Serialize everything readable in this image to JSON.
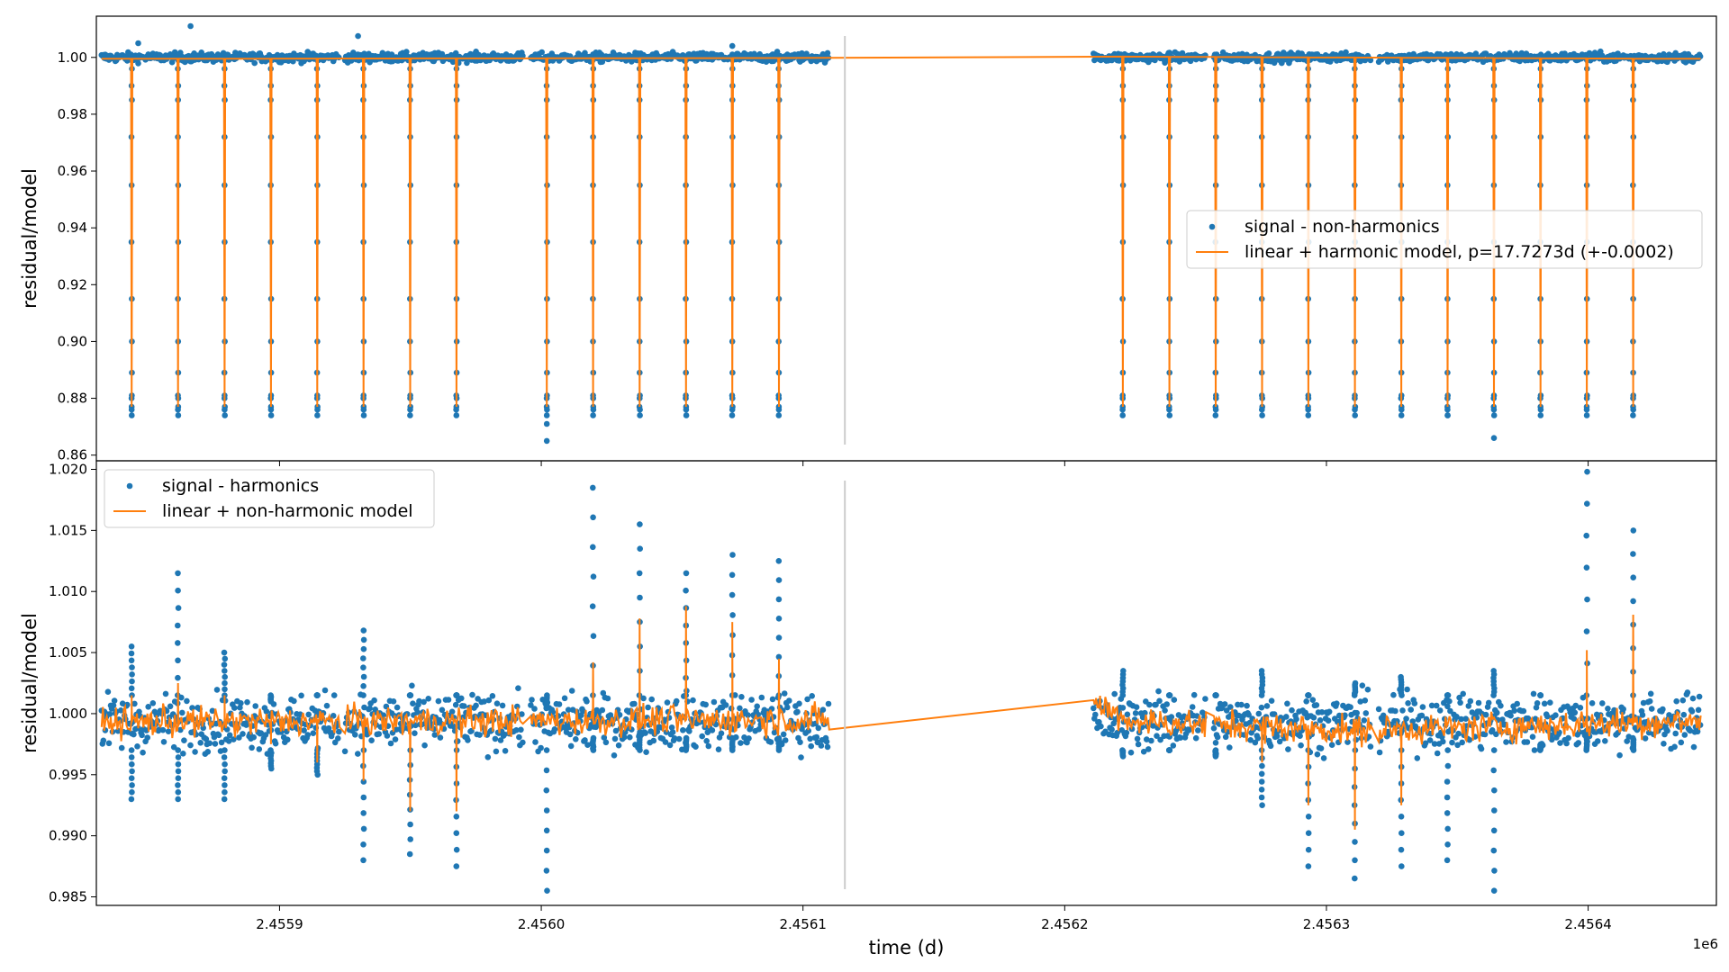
{
  "chart_data": [
    {
      "type": "scatter",
      "ylabel": "residual/model",
      "xlabel": "",
      "xlim": [
        2455830,
        2456449
      ],
      "ylim": [
        0.858,
        1.0145
      ],
      "xticks": [
        2455900,
        2456000,
        2456100,
        2456200,
        2456300,
        2456400
      ],
      "yticks": [
        0.86,
        0.88,
        0.9,
        0.92,
        0.94,
        0.96,
        0.98,
        1.0
      ],
      "ytick_labels": [
        "0.86",
        "0.88",
        "0.90",
        "0.92",
        "0.94",
        "0.96",
        "0.98",
        "1.00"
      ],
      "legend_location": "center-right",
      "vertical_line_x": 2456116,
      "series": [
        {
          "name": "signal - non-harmonics",
          "kind": "scatter",
          "color": "#1f77b4",
          "baseline": 1.0,
          "data_segments": [
            [
              2455832,
              2455923
            ],
            [
              2455925,
              2455993
            ],
            [
              2455996,
              2456110
            ],
            [
              2456211,
              2456254
            ],
            [
              2456257,
              2456317
            ],
            [
              2456320,
              2456443
            ]
          ],
          "dip_times": [
            2455843.5,
            2455861.2,
            2455879.0,
            2455896.7,
            2455914.4,
            2455932.1,
            2455949.9,
            2455967.6,
            2456002.1,
            2456019.8,
            2456037.6,
            2456055.3,
            2456073.0,
            2456090.8,
            2456222.2,
            2456240.0,
            2456257.7,
            2456275.4,
            2456293.1,
            2456310.9,
            2456328.6,
            2456346.3,
            2456364.0,
            2456381.8,
            2456399.5,
            2456417.2
          ],
          "dip_min": 0.874,
          "outliers": [
            [
              2455866,
              1.011
            ],
            [
              2455930,
              1.0075
            ],
            [
              2455846,
              1.005
            ],
            [
              2456073,
              1.004
            ],
            [
              2456002.1,
              0.871
            ],
            [
              2456002.1,
              0.865
            ],
            [
              2456364,
              0.866
            ],
            [
              2456346.3,
              0.874
            ]
          ]
        },
        {
          "name": "linear + harmonic model, p=17.7273d (+-0.0002)",
          "kind": "line",
          "color": "#ff7f0e",
          "period": 17.7273,
          "dip_depth": 0.877,
          "trend": [
            [
              2455832,
              0.9995
            ],
            [
              2456110,
              0.9998
            ],
            [
              2456211,
              1.0003
            ],
            [
              2456443,
              0.9995
            ]
          ]
        }
      ]
    },
    {
      "type": "scatter",
      "ylabel": "residual/model",
      "xlabel": "time (d)",
      "x_offset_label": "1e6",
      "xlim": [
        2455830,
        2456449
      ],
      "ylim": [
        0.9843,
        1.0207
      ],
      "xticks": [
        2455900,
        2456000,
        2456100,
        2456200,
        2456300,
        2456400
      ],
      "xtick_labels": [
        "2.4559",
        "2.4560",
        "2.4561",
        "2.4562",
        "2.4563",
        "2.4564"
      ],
      "yticks": [
        0.985,
        0.99,
        0.995,
        1.0,
        1.005,
        1.01,
        1.015,
        1.02
      ],
      "ytick_labels": [
        "0.985",
        "0.990",
        "0.995",
        "1.000",
        "1.005",
        "1.010",
        "1.015",
        "1.020"
      ],
      "legend_location": "top-left",
      "vertical_line_x": 2456116,
      "series": [
        {
          "name": "signal - harmonics",
          "kind": "scatter",
          "color": "#1f77b4",
          "baseline": 0.9993,
          "noise": 0.0011,
          "data_segments": [
            [
              2455832,
              2455923
            ],
            [
              2455925,
              2455993
            ],
            [
              2455996,
              2456110
            ],
            [
              2456211,
              2456254
            ],
            [
              2456257,
              2456317
            ],
            [
              2456320,
              2456443
            ]
          ],
          "excursions": [
            [
              2455843.5,
              1.0055,
              0.993
            ],
            [
              2455861.2,
              1.0115,
              0.993
            ],
            [
              2455879.0,
              1.005,
              0.993
            ],
            [
              2455896.7,
              1.001,
              0.9955
            ],
            [
              2455914.4,
              1.0015,
              0.995
            ],
            [
              2455932.1,
              1.0068,
              0.988
            ],
            [
              2455949.9,
              1.0015,
              0.9885
            ],
            [
              2455967.6,
              1.0015,
              0.9875
            ],
            [
              2456002.1,
              1.0005,
              0.9855
            ],
            [
              2456019.8,
              1.0185,
              0.998
            ],
            [
              2456037.6,
              1.0155,
              0.9985
            ],
            [
              2456055.3,
              1.0115,
              0.998
            ],
            [
              2456073.0,
              1.013,
              0.998
            ],
            [
              2456090.8,
              1.0125,
              0.998
            ],
            [
              2456222.2,
              1.0035,
              0.9965
            ],
            [
              2456240.0,
              1.0015,
              0.997
            ],
            [
              2456257.7,
              1.0015,
              0.9965
            ],
            [
              2456275.4,
              1.0035,
              0.9925
            ],
            [
              2456293.1,
              1.0015,
              0.9875
            ],
            [
              2456310.9,
              1.0025,
              0.9865
            ],
            [
              2456328.6,
              1.003,
              0.9875
            ],
            [
              2456346.3,
              1.0015,
              0.988
            ],
            [
              2456364.0,
              1.0035,
              0.9855
            ],
            [
              2456381.8,
              1.0015,
              0.9975
            ],
            [
              2456399.5,
              1.0198,
              0.998
            ],
            [
              2456417.2,
              1.015,
              0.998
            ]
          ]
        },
        {
          "name": "linear + non-harmonic model",
          "kind": "line",
          "color": "#ff7f0e",
          "trend": [
            [
              2455832,
              0.9993
            ],
            [
              2456110,
              0.9995
            ],
            [
              2456211,
              1.0009
            ],
            [
              2456225,
              0.9994
            ],
            [
              2456310,
              0.9986
            ],
            [
              2456443,
              0.9994
            ]
          ],
          "spikes": [
            [
              2455843.5,
              1.0015
            ],
            [
              2455861.2,
              1.0025
            ],
            [
              2455879.0,
              1.0015
            ],
            [
              2455896.7,
              0.9975
            ],
            [
              2455914.4,
              0.996
            ],
            [
              2455932.1,
              0.9945
            ],
            [
              2455949.9,
              0.992
            ],
            [
              2455967.6,
              0.992
            ],
            [
              2456019.8,
              1.0042
            ],
            [
              2456037.6,
              1.0078
            ],
            [
              2456055.3,
              1.0088
            ],
            [
              2456073.0,
              1.0075
            ],
            [
              2456090.8,
              1.0045
            ],
            [
              2456275.4,
              0.996
            ],
            [
              2456293.1,
              0.9925
            ],
            [
              2456310.9,
              0.9905
            ],
            [
              2456328.6,
              0.9925
            ],
            [
              2456399.5,
              1.0052
            ],
            [
              2456417.2,
              1.0081
            ]
          ]
        }
      ]
    }
  ]
}
